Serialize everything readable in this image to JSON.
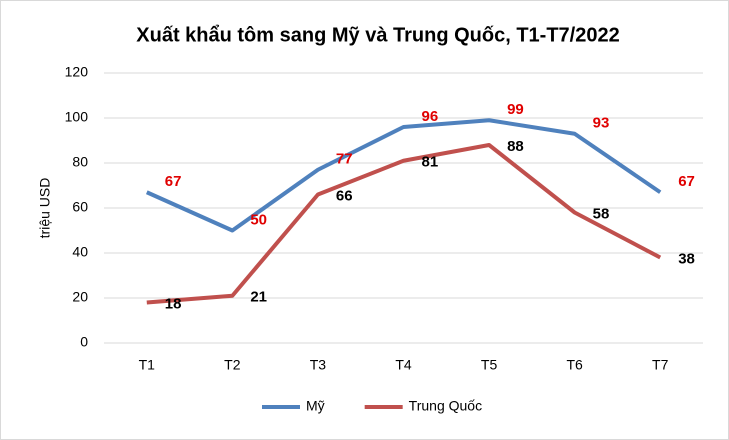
{
  "chart_data": {
    "type": "line",
    "title": "Xuất khẩu tôm sang Mỹ và Trung Quốc, T1-T7/2022",
    "y_label": "triệu USD",
    "categories": [
      "T1",
      "T2",
      "T3",
      "T4",
      "T5",
      "T6",
      "T7"
    ],
    "series": [
      {
        "name": "Mỹ",
        "color": "#4f81bd",
        "values": [
          67,
          50,
          77,
          96,
          99,
          93,
          67
        ]
      },
      {
        "name": "Trung Quốc",
        "color": "#c0504d",
        "values": [
          18,
          21,
          66,
          81,
          88,
          58,
          38
        ]
      }
    ],
    "ylim": [
      0,
      120
    ],
    "yticks": [
      0,
      20,
      40,
      60,
      80,
      100,
      120
    ],
    "grid": true,
    "legend": "bottom"
  }
}
